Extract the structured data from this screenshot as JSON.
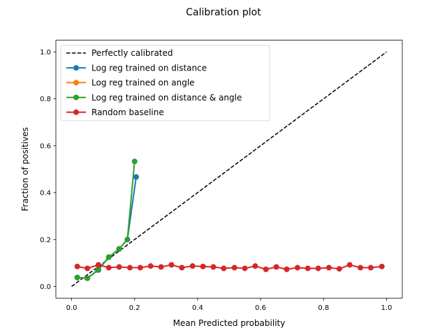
{
  "chart_data": {
    "type": "line",
    "title": "Calibration plot",
    "xlabel": "Mean Predicted probability",
    "ylabel": "Fraction of positives",
    "xlim": [
      -0.05,
      1.05
    ],
    "ylim": [
      -0.05,
      1.05
    ],
    "xticks": [
      0.0,
      0.2,
      0.4,
      0.6,
      0.8,
      1.0
    ],
    "yticks": [
      0.0,
      0.2,
      0.4,
      0.6,
      0.8,
      1.0
    ],
    "tick_labels_x": [
      "0.0",
      "0.2",
      "0.4",
      "0.6",
      "0.8",
      "1.0"
    ],
    "tick_labels_y": [
      "0.0",
      "0.2",
      "0.4",
      "0.6",
      "0.8",
      "1.0"
    ],
    "grid": false,
    "legend_position": "top-left",
    "series": [
      {
        "name": "Perfectly calibrated",
        "color": "#000000",
        "style": "dashed",
        "markers": false,
        "x": [
          0,
          1
        ],
        "y": [
          0,
          1
        ]
      },
      {
        "name": "Log reg trained on distance",
        "color": "#1f77b4",
        "style": "solid",
        "markers": true,
        "x": [
          0.018,
          0.05,
          0.085,
          0.118,
          0.151,
          0.177,
          0.205
        ],
        "y": [
          0.038,
          0.035,
          0.07,
          0.125,
          0.16,
          0.2,
          0.467
        ]
      },
      {
        "name": "Log reg trained on angle",
        "color": "#ff7f0e",
        "style": "solid",
        "markers": true,
        "x": [
          0.085
        ],
        "y": [
          0.09
        ]
      },
      {
        "name": "Log reg trained on distance & angle",
        "color": "#2ca02c",
        "style": "solid",
        "markers": true,
        "x": [
          0.018,
          0.05,
          0.083,
          0.118,
          0.151,
          0.177,
          0.2
        ],
        "y": [
          0.038,
          0.035,
          0.07,
          0.125,
          0.16,
          0.2,
          0.533
        ]
      },
      {
        "name": "Random baseline",
        "color": "#d62728",
        "style": "solid",
        "markers": true,
        "x": [
          0.018,
          0.05,
          0.085,
          0.118,
          0.151,
          0.185,
          0.218,
          0.251,
          0.284,
          0.317,
          0.35,
          0.384,
          0.417,
          0.45,
          0.483,
          0.517,
          0.55,
          0.583,
          0.617,
          0.65,
          0.683,
          0.717,
          0.75,
          0.783,
          0.817,
          0.85,
          0.883,
          0.917,
          0.95,
          0.985
        ],
        "y": [
          0.085,
          0.077,
          0.092,
          0.08,
          0.083,
          0.08,
          0.08,
          0.087,
          0.083,
          0.092,
          0.08,
          0.087,
          0.085,
          0.083,
          0.077,
          0.08,
          0.077,
          0.087,
          0.073,
          0.083,
          0.073,
          0.08,
          0.077,
          0.077,
          0.08,
          0.075,
          0.092,
          0.08,
          0.08,
          0.085
        ]
      }
    ]
  }
}
